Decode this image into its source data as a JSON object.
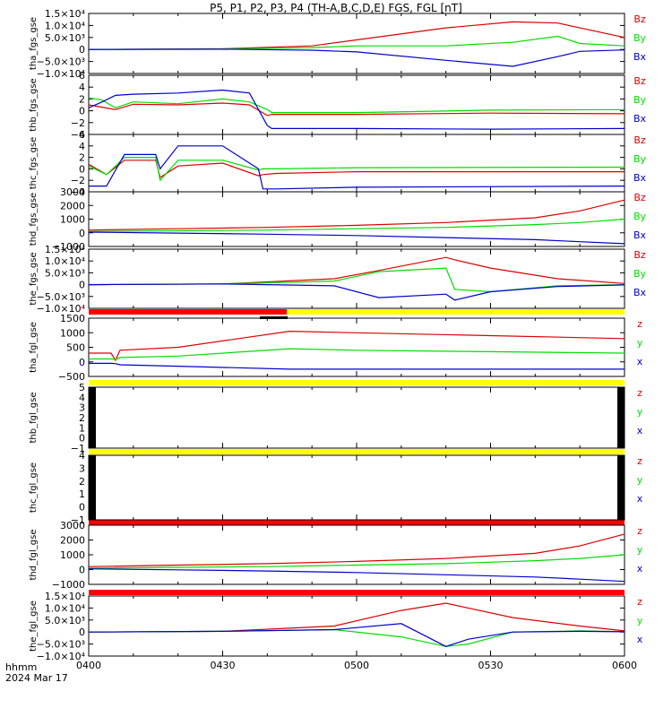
{
  "title": "P5, P1, P2, P3, P4 (TH-A,B,C,D,E) FGS, FGL [nT]",
  "time_axis": {
    "name": "hhmm",
    "date": "2024 Mar 17",
    "ticks": [
      "0400",
      "0430",
      "0500",
      "0530",
      "0600"
    ]
  },
  "colors": {
    "z": "#dd0000",
    "y": "#00dd00",
    "x": "#0000cc",
    "flag_red": "#ff0000",
    "flag_yellow": "#ffff00",
    "black": "#000000"
  },
  "chart_data": [
    {
      "type": "line",
      "panel": "tha_fgs_gse",
      "ylabel": "tha_fgs_gse",
      "yticks": [
        "1.5×10⁴",
        "1.0×10⁴",
        "5.0×10³",
        "0",
        "−5.0×10³",
        "−1.0×10⁴"
      ],
      "ylim": [
        -10000,
        15000
      ],
      "legend": [
        "Bz",
        "By",
        "Bx"
      ],
      "x": [
        0,
        30,
        50,
        60,
        80,
        95,
        105,
        110,
        120
      ],
      "series": [
        {
          "name": "Bz",
          "values": [
            0,
            300,
            1500,
            4000,
            9000,
            11500,
            11000,
            9000,
            5000
          ]
        },
        {
          "name": "By",
          "values": [
            0,
            200,
            800,
            1500,
            1500,
            3000,
            5500,
            2500,
            1500
          ]
        },
        {
          "name": "Bx",
          "values": [
            0,
            100,
            -300,
            -1000,
            -4500,
            -7000,
            -3000,
            -800,
            -200
          ]
        }
      ]
    },
    {
      "type": "line",
      "panel": "thb_fgs_gse",
      "ylabel": "thb_fgs_gse",
      "yticks": [
        "6",
        "4",
        "2",
        "0",
        "−2",
        "−4"
      ],
      "ylim": [
        -4,
        6
      ],
      "legend": [
        "Bz",
        "By",
        "Bx"
      ],
      "x": [
        0,
        3,
        6,
        10,
        20,
        30,
        36,
        40,
        41,
        60,
        90,
        120
      ],
      "series": [
        {
          "name": "Bz",
          "values": [
            1,
            0.6,
            0.2,
            1.1,
            1.0,
            1.3,
            1.0,
            -0.8,
            -0.6,
            -0.6,
            -0.4,
            -0.5
          ]
        },
        {
          "name": "By",
          "values": [
            2.2,
            1.8,
            0.5,
            1.5,
            1.2,
            2.0,
            1.5,
            0.2,
            -0.3,
            -0.3,
            0.1,
            0.2
          ]
        },
        {
          "name": "Bx",
          "values": [
            0.5,
            1.5,
            2.6,
            2.8,
            3.0,
            3.5,
            3.0,
            -2.5,
            -3.0,
            -3.0,
            -3.1,
            -3.0
          ]
        }
      ]
    },
    {
      "type": "line",
      "panel": "thc_fgs_gse",
      "ylabel": "thc_fgs_gse",
      "yticks": [
        "6",
        "4",
        "2",
        "0",
        "−2",
        "−4"
      ],
      "ylim": [
        -4,
        6
      ],
      "legend": [
        "Bz",
        "By",
        "Bx"
      ],
      "x": [
        0,
        4,
        8,
        15,
        16,
        20,
        30,
        38,
        39,
        42,
        60,
        120
      ],
      "series": [
        {
          "name": "Bz",
          "values": [
            0.8,
            -1,
            1.5,
            1.5,
            -1.5,
            0.5,
            1,
            -1.2,
            -1.0,
            -0.8,
            -0.5,
            -0.5
          ]
        },
        {
          "name": "By",
          "values": [
            0.5,
            -1,
            2.0,
            2.0,
            -2.0,
            1.5,
            1.5,
            -0.2,
            0.0,
            0.0,
            0.2,
            0.3
          ]
        },
        {
          "name": "Bx",
          "values": [
            -3,
            -3,
            2.5,
            2.5,
            0,
            4.0,
            4.0,
            0,
            -3.5,
            -3.5,
            -3.2,
            -3.0
          ]
        }
      ]
    },
    {
      "type": "line",
      "panel": "thd_fgs_gse",
      "ylabel": "thd_fgs_gse",
      "yticks": [
        "3000",
        "2000",
        "1000",
        "0",
        "−1000"
      ],
      "ylim": [
        -1000,
        3000
      ],
      "legend": [
        "Bz",
        "By",
        "Bx"
      ],
      "x": [
        0,
        20,
        40,
        60,
        80,
        100,
        110,
        120
      ],
      "series": [
        {
          "name": "Bz",
          "values": [
            200,
            300,
            400,
            550,
            750,
            1100,
            1600,
            2400
          ]
        },
        {
          "name": "By",
          "values": [
            100,
            150,
            200,
            300,
            400,
            600,
            750,
            1000
          ]
        },
        {
          "name": "Bx",
          "values": [
            50,
            -20,
            -100,
            -200,
            -350,
            -500,
            -650,
            -800
          ]
        }
      ]
    },
    {
      "type": "line",
      "panel": "the_fgs_gse",
      "ylabel": "the_fgs_gse",
      "yticks": [
        "1.5×10⁴",
        "1.0×10⁴",
        "5.0×10³",
        "0",
        "−5.0×10³",
        "−1.0×10⁴"
      ],
      "ylim": [
        -10000,
        15000
      ],
      "legend": [
        "Bz",
        "By",
        "Bx"
      ],
      "x": [
        0,
        30,
        55,
        65,
        80,
        82,
        90,
        105,
        120
      ],
      "series": [
        {
          "name": "Bz",
          "values": [
            0,
            300,
            2500,
            6000,
            11500,
            10500,
            7000,
            2500,
            500
          ]
        },
        {
          "name": "By",
          "values": [
            0,
            300,
            1500,
            5500,
            7000,
            -2000,
            -3000,
            -500,
            0
          ]
        },
        {
          "name": "Bx",
          "values": [
            0,
            300,
            -500,
            -5500,
            -4000,
            -6500,
            -3000,
            -800,
            -100
          ]
        }
      ]
    },
    {
      "type": "line",
      "panel": "tha_fgl_gse",
      "ylabel": "tha_fgl_gse",
      "yticks": [
        "1500",
        "1000",
        "500",
        "0",
        "−500"
      ],
      "ylim": [
        -500,
        1500
      ],
      "legend": [
        "z",
        "y",
        "x"
      ],
      "x": [
        0,
        5,
        6,
        7,
        20,
        45,
        60,
        90,
        120
      ],
      "series": [
        {
          "name": "z",
          "values": [
            300,
            300,
            50,
            400,
            500,
            1050,
            1000,
            900,
            800
          ]
        },
        {
          "name": "y",
          "values": [
            100,
            100,
            80,
            150,
            200,
            450,
            400,
            350,
            300
          ]
        },
        {
          "name": "x",
          "values": [
            -50,
            -50,
            -60,
            -100,
            -150,
            -250,
            -250,
            -250,
            -250
          ]
        }
      ]
    },
    {
      "type": "line",
      "panel": "thb_fgl_gse",
      "ylabel": "thb_fgl_gse",
      "yticks": [
        "5",
        "4",
        "3",
        "2",
        "1",
        "0",
        "−1"
      ],
      "ylim": [
        -1,
        5
      ],
      "legend": [
        "z",
        "y",
        "x"
      ],
      "series": [
        {
          "name": "z",
          "values": []
        },
        {
          "name": "y",
          "values": []
        },
        {
          "name": "x",
          "values": []
        }
      ]
    },
    {
      "type": "line",
      "panel": "thc_fgl_gse",
      "ylabel": "thc_fgl_gse",
      "yticks": [
        "4",
        "3",
        "2",
        "1",
        "0",
        "−1"
      ],
      "ylim": [
        -1,
        4
      ],
      "legend": [
        "z",
        "y",
        "x"
      ],
      "series": [
        {
          "name": "z",
          "values": []
        },
        {
          "name": "y",
          "values": []
        },
        {
          "name": "x",
          "values": []
        }
      ]
    },
    {
      "type": "line",
      "panel": "thd_fgl_gse",
      "ylabel": "thd_fgl_gse",
      "yticks": [
        "3000",
        "2000",
        "1000",
        "0",
        "−1000"
      ],
      "ylim": [
        -1000,
        3000
      ],
      "legend": [
        "z",
        "y",
        "x"
      ],
      "x": [
        0,
        20,
        40,
        60,
        80,
        100,
        110,
        120
      ],
      "series": [
        {
          "name": "z",
          "values": [
            200,
            300,
            400,
            550,
            750,
            1100,
            1600,
            2400
          ]
        },
        {
          "name": "y",
          "values": [
            100,
            150,
            200,
            300,
            400,
            600,
            750,
            1000
          ]
        },
        {
          "name": "x",
          "values": [
            50,
            -20,
            -100,
            -200,
            -350,
            -500,
            -650,
            -800
          ]
        }
      ]
    },
    {
      "type": "line",
      "panel": "the_fgl_gse",
      "ylabel": "the_fgl_gse",
      "yticks": [
        "1.5×10⁴",
        "1.0×10⁴",
        "5.0×10³",
        "0",
        "−5.0×10³",
        "−1.0×10⁴"
      ],
      "ylim": [
        -10000,
        15000
      ],
      "legend": [
        "z",
        "y",
        "x"
      ],
      "x": [
        0,
        30,
        55,
        70,
        80,
        85,
        95,
        110,
        120
      ],
      "series": [
        {
          "name": "z",
          "values": [
            0,
            300,
            2500,
            9000,
            12000,
            10000,
            6000,
            2500,
            500
          ]
        },
        {
          "name": "y",
          "values": [
            0,
            300,
            1000,
            -2000,
            -6000,
            -5000,
            0,
            500,
            200
          ]
        },
        {
          "name": "x",
          "values": [
            0,
            300,
            1000,
            3500,
            -6000,
            -3000,
            0,
            300,
            100
          ]
        }
      ]
    }
  ]
}
